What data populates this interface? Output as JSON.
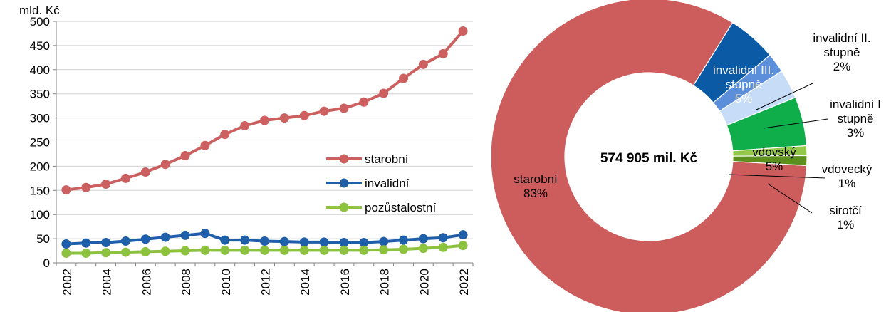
{
  "chart_data": [
    {
      "type": "line",
      "ylabel": "mld. Kč",
      "ylim": [
        0,
        500
      ],
      "yticks": [
        "0",
        "50",
        "100",
        "150",
        "200",
        "250",
        "300",
        "350",
        "400",
        "450",
        "500"
      ],
      "x": [
        2002,
        2003,
        2004,
        2005,
        2006,
        2007,
        2008,
        2009,
        2010,
        2011,
        2012,
        2013,
        2014,
        2015,
        2016,
        2017,
        2018,
        2019,
        2020,
        2021,
        2022
      ],
      "xtick_labels": [
        "2002",
        "2004",
        "2006",
        "2008",
        "2010",
        "2012",
        "2014",
        "2016",
        "2018",
        "2020",
        "2022"
      ],
      "grid": true,
      "legend_position": "center-right",
      "series": [
        {
          "name": "starobní",
          "color": "#cc6060",
          "values": [
            151,
            156,
            163,
            175,
            188,
            204,
            222,
            243,
            266,
            284,
            295,
            300,
            305,
            314,
            320,
            333,
            351,
            382,
            411,
            433,
            480
          ]
        },
        {
          "name": "invalidní",
          "color": "#1f5ea8",
          "values": [
            39,
            41,
            42,
            45,
            49,
            53,
            57,
            61,
            47,
            47,
            45,
            44,
            43,
            43,
            42,
            42,
            44,
            47,
            50,
            52,
            58
          ]
        },
        {
          "name": "pozůstalostní",
          "color": "#8dc23f",
          "values": [
            20,
            20,
            21,
            22,
            23,
            24,
            25,
            26,
            26,
            26,
            26,
            26,
            26,
            26,
            26,
            26,
            27,
            28,
            30,
            32,
            36
          ]
        }
      ]
    },
    {
      "type": "pie",
      "center_label": "574 905 mil. Kč",
      "slices": [
        {
          "label_lines": [
            "starobní",
            "83%"
          ],
          "value": 83,
          "color": "#cd5c5c"
        },
        {
          "label_lines": [
            "invalidní III.",
            "stupně",
            "5%"
          ],
          "value": 5,
          "color": "#0b5aa5"
        },
        {
          "label_lines": [
            "invalidní II.",
            "stupně",
            "2%"
          ],
          "value": 2,
          "color": "#5b8fd9"
        },
        {
          "label_lines": [
            "invalidní I",
            "stupně",
            "3%"
          ],
          "value": 3,
          "color": "#c6dcf7"
        },
        {
          "label_lines": [
            "vdovský",
            "5%"
          ],
          "value": 5,
          "color": "#0fae4b"
        },
        {
          "label_lines": [
            "vdovecký",
            "1%"
          ],
          "value": 1,
          "color": "#93c84a"
        },
        {
          "label_lines": [
            "sirotčí",
            "1%"
          ],
          "value": 1,
          "color": "#5d8f1e"
        }
      ]
    }
  ]
}
